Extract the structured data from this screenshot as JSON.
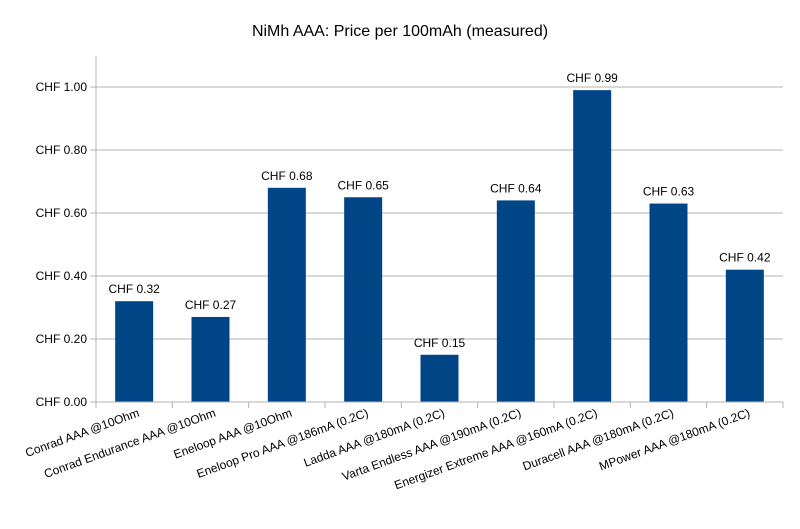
{
  "chart_data": {
    "type": "bar",
    "title": "NiMh AAA: Price per 100mAh (measured)",
    "xlabel": "",
    "ylabel": "",
    "categories": [
      "Conrad AAA @10Ohm",
      "Conrad Endurance AAA @10Ohm",
      "Eneloop AAA @10Ohm",
      "Eneloop Pro AAA @186mA (0.2C)",
      "Ladda AAA @180mA (0.2C)",
      "Varta Endless AAA @190mA (0.2C)",
      "Energizer Extreme AAA @160mA (0.2C)",
      "Duracell AAA @180mA (0.2C)",
      "MPower AAA @180mA (0.2C)"
    ],
    "values": [
      0.32,
      0.27,
      0.68,
      0.65,
      0.15,
      0.64,
      0.99,
      0.63,
      0.42
    ],
    "data_labels": [
      "CHF 0.32",
      "CHF 0.27",
      "CHF 0.68",
      "CHF 0.65",
      "CHF 0.15",
      "CHF 0.64",
      "CHF 0.99",
      "CHF 0.63",
      "CHF 0.42"
    ],
    "yticks": [
      0,
      0.2,
      0.4,
      0.6,
      0.8,
      1.0
    ],
    "ytick_labels": [
      "CHF 0.00",
      "CHF 0.20",
      "CHF 0.40",
      "CHF 0.60",
      "CHF 0.80",
      "CHF 1.00"
    ],
    "ylim": [
      0,
      1.0
    ],
    "grid": true,
    "legend": "none",
    "colors": {
      "bar": "#004586",
      "grid": "#b3b3b3",
      "axis": "#b3b3b3"
    }
  }
}
